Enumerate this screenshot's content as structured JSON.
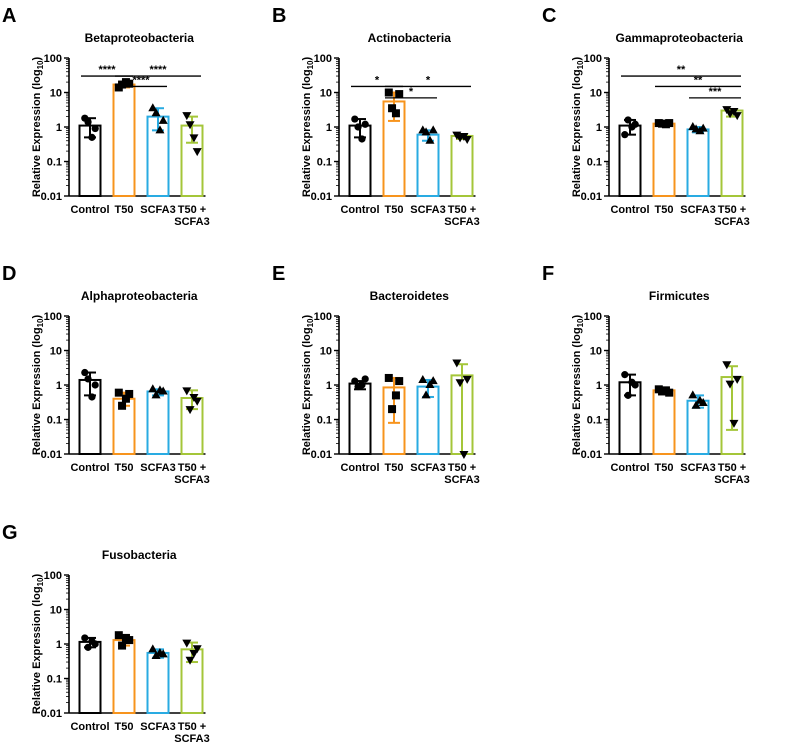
{
  "chart_data": [
    {
      "panel": "A",
      "title": "Betaproteobacteria",
      "type": "bar",
      "ylabel": "Relative Expression (log",
      "ylabel_sub": "10",
      "ylabel_end": ")",
      "yscale": "log",
      "ylim": [
        0.01,
        100
      ],
      "yticks": [
        "0.01",
        "0.1",
        "1",
        "10",
        "100"
      ],
      "categories": [
        "Control",
        "T50",
        "SCFA3",
        "T50 +|SCFA3"
      ],
      "values": [
        1.1,
        17,
        2.0,
        1.1
      ],
      "err_low": [
        0.5,
        14,
        0.8,
        0.35
      ],
      "err_high": [
        1.8,
        20,
        3.5,
        2.0
      ],
      "points": [
        [
          1.8,
          1.4,
          0.5,
          0.9
        ],
        [
          14,
          17,
          20,
          18
        ],
        [
          3.5,
          2.5,
          0.8,
          1.5
        ],
        [
          2.2,
          1.2,
          0.5,
          0.2
        ]
      ],
      "comparisons": [
        {
          "from": 0,
          "to": 1,
          "label": "****",
          "y": 30
        },
        {
          "from": 1,
          "to": 3,
          "label": "****",
          "y": 30
        },
        {
          "from": 1,
          "to": 2,
          "label": "****",
          "y": 15
        }
      ]
    },
    {
      "panel": "B",
      "title": "Actinobacteria",
      "type": "bar",
      "ylabel": "Relative Expression (log",
      "ylabel_sub": "10",
      "ylabel_end": ")",
      "yscale": "log",
      "ylim": [
        0.01,
        100
      ],
      "yticks": [
        "0.01",
        "0.1",
        "1",
        "10",
        "100"
      ],
      "categories": [
        "Control",
        "T50",
        "SCFA3",
        "T50 +|SCFA3"
      ],
      "values": [
        1.1,
        5.5,
        0.6,
        0.55
      ],
      "err_low": [
        0.5,
        1.5,
        0.4,
        0.45
      ],
      "err_high": [
        1.7,
        10,
        0.8,
        0.6
      ],
      "points": [
        [
          1.7,
          1.0,
          0.45,
          1.2
        ],
        [
          10,
          3.5,
          2.5,
          9
        ],
        [
          0.8,
          0.7,
          0.4,
          0.8
        ],
        [
          0.6,
          0.5,
          0.55,
          0.45
        ]
      ],
      "comparisons": [
        {
          "from": 0,
          "to": 1,
          "label": "*",
          "y": 15
        },
        {
          "from": 1,
          "to": 3,
          "label": "*",
          "y": 15
        },
        {
          "from": 1,
          "to": 2,
          "label": "*",
          "y": 7
        }
      ]
    },
    {
      "panel": "C",
      "title": "Gammaproteobacteria",
      "type": "bar",
      "ylabel": "Relative Expression (log",
      "ylabel_sub": "10",
      "ylabel_end": ")",
      "yscale": "log",
      "ylim": [
        0.01,
        100
      ],
      "yticks": [
        "0.01",
        "0.1",
        "1",
        "10",
        "100"
      ],
      "categories": [
        "Control",
        "T50",
        "SCFA3",
        "T50 +|SCFA3"
      ],
      "values": [
        1.1,
        1.25,
        0.85,
        3.0
      ],
      "err_low": [
        0.6,
        1.1,
        0.7,
        2.0
      ],
      "err_high": [
        1.6,
        1.4,
        1.0,
        3.3
      ],
      "points": [
        [
          0.6,
          1.6,
          1.0,
          1.2
        ],
        [
          1.3,
          1.25,
          1.2,
          1.3
        ],
        [
          1.0,
          0.85,
          0.75,
          0.9
        ],
        [
          3.3,
          2.5,
          2.9,
          2.2
        ]
      ],
      "comparisons": [
        {
          "from": 0,
          "to": 3,
          "label": "**",
          "y": 30
        },
        {
          "from": 1,
          "to": 3,
          "label": "**",
          "y": 15
        },
        {
          "from": 2,
          "to": 3,
          "label": "***",
          "y": 7
        }
      ]
    },
    {
      "panel": "D",
      "title": "Alphaproteobacteria",
      "type": "bar",
      "ylabel": "Relative Expression (log",
      "ylabel_sub": "10",
      "ylabel_end": ")",
      "yscale": "log",
      "ylim": [
        0.01,
        100
      ],
      "yticks": [
        "0.01",
        "0.1",
        "1",
        "10",
        "100"
      ],
      "categories": [
        "Control",
        "T50",
        "SCFA3",
        "T50 +|SCFA3"
      ],
      "values": [
        1.4,
        0.4,
        0.65,
        0.42
      ],
      "err_low": [
        0.5,
        0.25,
        0.5,
        0.2
      ],
      "err_high": [
        2.3,
        0.6,
        0.75,
        0.7
      ],
      "points": [
        [
          2.3,
          1.5,
          0.45,
          1.0
        ],
        [
          0.6,
          0.25,
          0.4,
          0.55
        ],
        [
          0.75,
          0.5,
          0.7,
          0.65
        ],
        [
          0.7,
          0.2,
          0.45,
          0.35
        ]
      ],
      "comparisons": []
    },
    {
      "panel": "E",
      "title": "Bacteroidetes",
      "type": "bar",
      "ylabel": "Relative Expression (log",
      "ylabel_sub": "10",
      "ylabel_end": ")",
      "yscale": "log",
      "ylim": [
        0.01,
        100
      ],
      "yticks": [
        "0.01",
        "0.1",
        "1",
        "10",
        "100"
      ],
      "categories": [
        "Control",
        "T50",
        "SCFA3",
        "T50 +|SCFA3"
      ],
      "values": [
        1.1,
        0.85,
        0.9,
        1.9
      ],
      "err_low": [
        0.75,
        0.08,
        0.45,
        0.01
      ],
      "err_high": [
        1.3,
        1.6,
        1.4,
        4.0
      ],
      "points": [
        [
          1.3,
          0.9,
          1.0,
          1.5
        ],
        [
          1.6,
          0.2,
          0.5,
          1.3
        ],
        [
          1.4,
          0.5,
          1.0,
          1.3
        ],
        [
          4.5,
          1.2,
          0.01,
          1.5
        ]
      ],
      "comparisons": []
    },
    {
      "panel": "F",
      "title": "Firmicutes",
      "type": "bar",
      "ylabel": "Relative Expression (log",
      "ylabel_sub": "10",
      "ylabel_end": ")",
      "yscale": "log",
      "ylim": [
        0.01,
        100
      ],
      "yticks": [
        "0.01",
        "0.1",
        "1",
        "10",
        "100"
      ],
      "categories": [
        "Control",
        "T50",
        "SCFA3",
        "T50 +|SCFA3"
      ],
      "values": [
        1.2,
        0.7,
        0.35,
        1.7
      ],
      "err_low": [
        0.5,
        0.6,
        0.22,
        0.05
      ],
      "err_high": [
        2.0,
        0.8,
        0.5,
        3.5
      ],
      "points": [
        [
          2.0,
          0.5,
          1.2,
          1.0
        ],
        [
          0.75,
          0.65,
          0.7,
          0.6
        ],
        [
          0.5,
          0.25,
          0.35,
          0.3
        ],
        [
          4.0,
          1.1,
          0.08,
          1.5
        ]
      ],
      "comparisons": []
    },
    {
      "panel": "G",
      "title": "Fusobacteria",
      "type": "bar",
      "ylabel": "Relative Expression (log",
      "ylabel_sub": "10",
      "ylabel_end": ")",
      "yscale": "log",
      "ylim": [
        0.01,
        100
      ],
      "yticks": [
        "0.01",
        "0.1",
        "1",
        "10",
        "100"
      ],
      "categories": [
        "Control",
        "T50",
        "SCFA3",
        "T50 +|SCFA3"
      ],
      "values": [
        1.15,
        1.3,
        0.55,
        0.7
      ],
      "err_low": [
        0.8,
        0.9,
        0.4,
        0.3
      ],
      "err_high": [
        1.5,
        1.8,
        0.7,
        1.1
      ],
      "points": [
        [
          1.5,
          0.8,
          1.2,
          1.0
        ],
        [
          1.8,
          0.9,
          1.5,
          1.3
        ],
        [
          0.7,
          0.45,
          0.55,
          0.5
        ],
        [
          1.1,
          0.35,
          0.55,
          0.75
        ]
      ],
      "comparisons": []
    }
  ],
  "colors": {
    "Control": "#000000",
    "T50": "#f7941d",
    "SCFA3": "#29abe2",
    "T50 +|SCFA3": "#a4c639"
  },
  "markers": {
    "Control": "circle",
    "T50": "square",
    "SCFA3": "triangle-up",
    "T50 +|SCFA3": "triangle-down"
  }
}
